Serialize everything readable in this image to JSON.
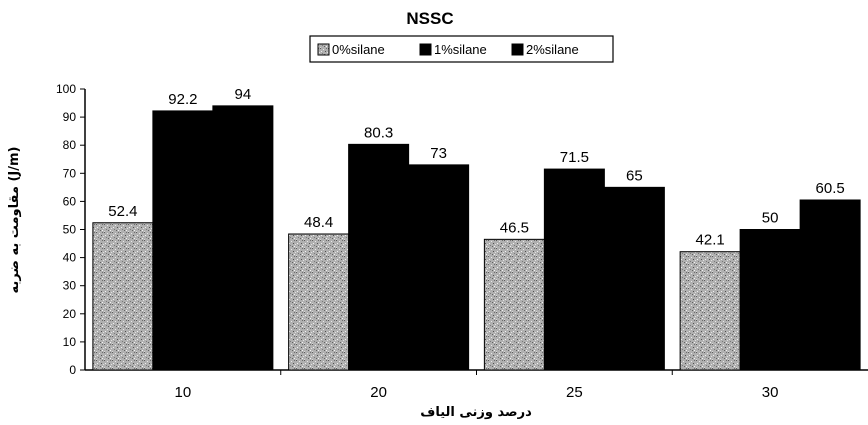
{
  "chart_data": {
    "type": "bar",
    "title": "NSSC",
    "xlabel": "درصد وزنی الیاف",
    "ylabel": "مقاومت به ضربه (J/m)",
    "categories": [
      "10",
      "20",
      "25",
      "30"
    ],
    "series": [
      {
        "name": "0%silane",
        "values": [
          52.4,
          48.4,
          46.5,
          42.1
        ],
        "data_labels": [
          "52.4",
          "48.4",
          "46.5",
          "42.1"
        ],
        "pattern": "gray-speckle"
      },
      {
        "name": "1%silane",
        "values": [
          92.2,
          80.3,
          71.5,
          50
        ],
        "data_labels": [
          "92.2",
          "80.3",
          "71.5",
          "50"
        ],
        "color": "#000000"
      },
      {
        "name": "2%silane",
        "values": [
          94,
          73,
          65,
          60.5
        ],
        "data_labels": [
          "94",
          "73",
          "65",
          "60.5"
        ],
        "color": "#000000"
      }
    ],
    "ylim": [
      0,
      100
    ],
    "yticks": [
      "0",
      "10",
      "20",
      "30",
      "40",
      "50",
      "60",
      "70",
      "80",
      "90",
      "100"
    ],
    "grid": false,
    "legend_position": "top"
  }
}
